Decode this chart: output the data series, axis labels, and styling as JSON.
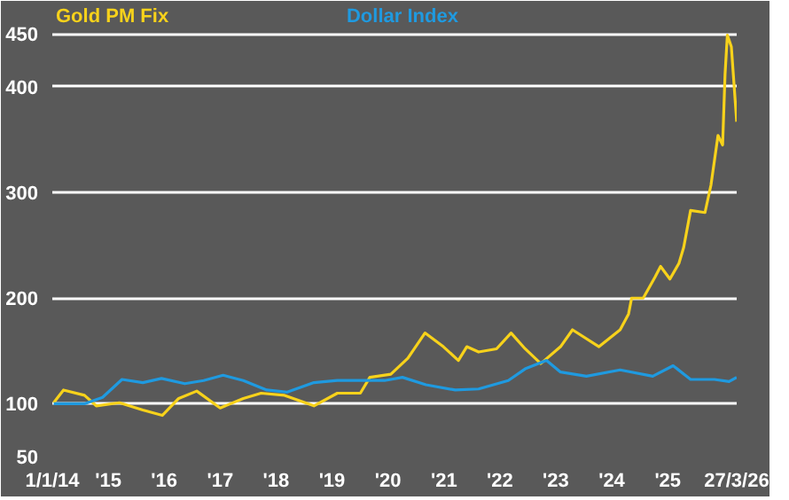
{
  "chart_data": {
    "type": "line",
    "x": [
      "2014-01-10",
      "2014-03-15",
      "2014-07-30",
      "2014-10-15",
      "2015-03-15",
      "2015-08-15",
      "2015-12-20",
      "2016-04-05",
      "2016-08-01",
      "2017-01-01",
      "2017-06-01",
      "2017-09-25",
      "2018-02-25",
      "2018-09-05",
      "2019-02-05",
      "2019-07-05",
      "2019-09-05",
      "2020-01-20",
      "2020-05-10",
      "2020-08-30",
      "2020-12-28",
      "2021-04-05",
      "2021-05-30",
      "2021-08-15",
      "2021-12-10",
      "2022-03-15",
      "2022-06-15",
      "2022-09-25",
      "2023-02-01",
      "2023-04-20",
      "2023-10-10",
      "2024-02-25",
      "2024-04-20",
      "2024-05-10",
      "2024-07-25",
      "2024-10-10",
      "2024-11-15",
      "2025-01-15",
      "2025-03-15",
      "2025-04-15",
      "2025-05-30",
      "2025-09-01",
      "2025-10-10",
      "2025-11-25",
      "2025-12-25",
      "2026-01-10",
      "2026-01-25",
      "2026-02-20",
      "2026-03-27"
    ],
    "series": [
      {
        "name": "Gold PM Fix",
        "color": "#f7d21b",
        "values": [
          101,
          113,
          108,
          98,
          101,
          94,
          89,
          105,
          112,
          96,
          105,
          110,
          108,
          98,
          110,
          110,
          125,
          128,
          143,
          167,
          154,
          141,
          154,
          149,
          152,
          167,
          152,
          138,
          154,
          170,
          154,
          170,
          185,
          200,
          200,
          220,
          230,
          218,
          233,
          248,
          283,
          281,
          307,
          354,
          345,
          412,
          449,
          438,
          367
        ]
      },
      {
        "name": "Dollar Index",
        "color": "#1f9ae0",
        "x": [
          "2014-01-10",
          "2014-07-30",
          "2014-11-25",
          "2015-04-01",
          "2015-08-15",
          "2015-12-15",
          "2016-05-15",
          "2016-09-15",
          "2017-01-20",
          "2017-06-01",
          "2017-11-01",
          "2018-03-15",
          "2018-09-05",
          "2019-02-05",
          "2019-07-05",
          "2019-12-10",
          "2020-04-05",
          "2020-09-05",
          "2021-03-15",
          "2021-08-15",
          "2022-02-25",
          "2022-06-15",
          "2022-11-01",
          "2023-02-01",
          "2023-07-20",
          "2024-02-25",
          "2024-09-25",
          "2025-02-05",
          "2025-05-30",
          "2025-11-01",
          "2026-02-05",
          "2026-03-27"
        ],
        "values": [
          100,
          100,
          106,
          123,
          120,
          124,
          119,
          122,
          127,
          122,
          113,
          111,
          120,
          122,
          122,
          122,
          125,
          118,
          113,
          114,
          122,
          133,
          141,
          130,
          126,
          132,
          126,
          136,
          123,
          123,
          121,
          125
        ]
      }
    ],
    "xlim": [
      "2014-01-01",
      "2026-03-27"
    ],
    "xticks": [
      {
        "value": "2014-01-01",
        "label": "1/1/14"
      },
      {
        "value": "2015-01-01",
        "label": "'15"
      },
      {
        "value": "2016-01-01",
        "label": "'16"
      },
      {
        "value": "2017-01-01",
        "label": "'17"
      },
      {
        "value": "2018-01-01",
        "label": "'18"
      },
      {
        "value": "2019-01-01",
        "label": "'19"
      },
      {
        "value": "2020-01-01",
        "label": "'20"
      },
      {
        "value": "2021-01-01",
        "label": "'21"
      },
      {
        "value": "2022-01-01",
        "label": "'22"
      },
      {
        "value": "2023-01-01",
        "label": "'23"
      },
      {
        "value": "2024-01-01",
        "label": "'24"
      },
      {
        "value": "2025-01-01",
        "label": "'25"
      },
      {
        "value": "2026-03-27",
        "label": "27/3/26"
      }
    ],
    "ylim": [
      50,
      478
    ],
    "yticks": [
      50,
      100,
      200,
      300,
      400,
      450
    ],
    "grid": "y",
    "marker": "none",
    "line_style": "solid"
  }
}
